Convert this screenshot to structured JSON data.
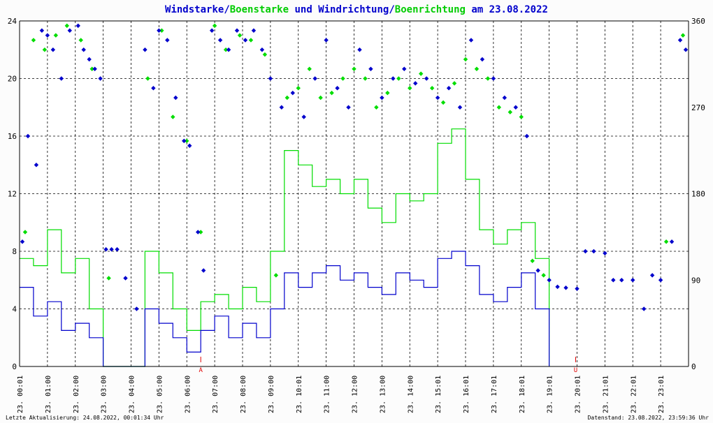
{
  "title": {
    "parts": [
      {
        "text": "Windstarke",
        "color": "#0000cc"
      },
      {
        "text": "/",
        "color": "#0000cc"
      },
      {
        "text": "Boenstarke",
        "color": "#00cc00"
      },
      {
        "text": " und ",
        "color": "#0000cc"
      },
      {
        "text": "Windrichtung",
        "color": "#0000cc"
      },
      {
        "text": "/",
        "color": "#0000cc"
      },
      {
        "text": "Boenrichtung",
        "color": "#00cc00"
      },
      {
        "text": " am 23.08.2022",
        "color": "#0000cc"
      }
    ]
  },
  "footer": {
    "left": "Letzte Aktualisierung: 24.08.2022, 00:01:34 Uhr",
    "right": "Datenstand: 23.08.2022, 23:59:36 Uhr"
  },
  "markers": [
    {
      "hour": 6.5,
      "label": "A"
    },
    {
      "hour": 19.95,
      "label": "U"
    }
  ],
  "chart_data": {
    "type": "line",
    "x_range": [
      0,
      24
    ],
    "x_tick_labels": [
      "23. 00:01",
      "23. 01:00",
      "23. 02:00",
      "23. 03:00",
      "23. 04:00",
      "23. 05:00",
      "23. 06:00",
      "23. 07:00",
      "23. 08:00",
      "23. 09:00",
      "23. 10:01",
      "23. 11:00",
      "23. 12:00",
      "23. 13:00",
      "23. 14:00",
      "23. 15:01",
      "23. 16:01",
      "23. 17:01",
      "23. 18:01",
      "23. 19:01",
      "23. 20:01",
      "23. 21:01",
      "23. 22:01",
      "23. 23:01"
    ],
    "y_left": {
      "min": 0,
      "max": 24,
      "ticks": [
        0,
        4,
        8,
        12,
        16,
        20,
        24
      ]
    },
    "y_right": {
      "min": 0,
      "max": 360,
      "ticks": [
        0,
        90,
        180,
        270,
        360
      ]
    },
    "grid": true,
    "colors": {
      "wind": "#0000cc",
      "gust": "#00dd00",
      "grid": "#000000"
    },
    "series": [
      {
        "name": "Windstarke",
        "kind": "line",
        "axis": "left",
        "hours": [
          0.0,
          0.5,
          1.0,
          1.5,
          2.0,
          2.5,
          3.0,
          3.5,
          4.0,
          4.5,
          5.0,
          5.5,
          6.0,
          6.5,
          7.0,
          7.5,
          8.0,
          8.5,
          9.0,
          9.5,
          10.0,
          10.5,
          11.0,
          11.5,
          12.0,
          12.5,
          13.0,
          13.5,
          14.0,
          14.5,
          15.0,
          15.5,
          16.0,
          16.5,
          17.0,
          17.5,
          18.0,
          18.5,
          19.0
        ],
        "values": [
          5.5,
          3.5,
          4.5,
          2.5,
          3.0,
          2.0,
          0.0,
          0.0,
          0.0,
          4.0,
          3.0,
          2.0,
          1.0,
          2.5,
          3.5,
          2.0,
          3.0,
          2.0,
          4.0,
          6.5,
          5.5,
          6.5,
          7.0,
          6.0,
          6.5,
          5.5,
          5.0,
          6.5,
          6.0,
          5.5,
          7.5,
          8.0,
          7.0,
          5.0,
          4.5,
          5.5,
          6.5,
          4.0,
          0.0
        ]
      },
      {
        "name": "Boenstarke",
        "kind": "line",
        "axis": "left",
        "hours": [
          0.0,
          0.5,
          1.0,
          1.5,
          2.0,
          2.5,
          3.0,
          3.5,
          4.0,
          4.5,
          5.0,
          5.5,
          6.0,
          6.5,
          7.0,
          7.5,
          8.0,
          8.5,
          9.0,
          9.5,
          10.0,
          10.5,
          11.0,
          11.5,
          12.0,
          12.5,
          13.0,
          13.5,
          14.0,
          14.5,
          15.0,
          15.5,
          16.0,
          16.5,
          17.0,
          17.5,
          18.0,
          18.5,
          19.0
        ],
        "values": [
          7.5,
          7.0,
          9.5,
          6.5,
          7.5,
          4.0,
          0.0,
          0.0,
          0.0,
          8.0,
          6.5,
          4.0,
          2.5,
          4.5,
          5.0,
          4.0,
          5.5,
          4.5,
          8.0,
          15.0,
          14.0,
          12.5,
          13.0,
          12.0,
          13.0,
          11.0,
          10.0,
          12.0,
          11.5,
          12.0,
          15.5,
          16.5,
          13.0,
          9.5,
          8.5,
          9.5,
          10.0,
          7.5,
          0.0
        ]
      },
      {
        "name": "Windrichtung",
        "kind": "scatter",
        "axis": "right",
        "points": [
          [
            0.1,
            130
          ],
          [
            0.3,
            240
          ],
          [
            0.6,
            210
          ],
          [
            0.8,
            350
          ],
          [
            1.0,
            345
          ],
          [
            1.2,
            330
          ],
          [
            1.5,
            300
          ],
          [
            1.8,
            350
          ],
          [
            2.1,
            355
          ],
          [
            2.3,
            330
          ],
          [
            2.5,
            320
          ],
          [
            2.7,
            310
          ],
          [
            2.9,
            300
          ],
          [
            3.1,
            122
          ],
          [
            3.3,
            122
          ],
          [
            3.5,
            122
          ],
          [
            3.8,
            92
          ],
          [
            4.2,
            60
          ],
          [
            4.5,
            330
          ],
          [
            4.8,
            290
          ],
          [
            5.0,
            350
          ],
          [
            5.3,
            340
          ],
          [
            5.6,
            280
          ],
          [
            5.9,
            235
          ],
          [
            6.1,
            230
          ],
          [
            6.4,
            140
          ],
          [
            6.6,
            100
          ],
          [
            6.9,
            350
          ],
          [
            7.2,
            340
          ],
          [
            7.5,
            330
          ],
          [
            7.8,
            350
          ],
          [
            8.1,
            340
          ],
          [
            8.4,
            350
          ],
          [
            8.7,
            330
          ],
          [
            9.0,
            300
          ],
          [
            9.4,
            270
          ],
          [
            9.8,
            285
          ],
          [
            10.2,
            260
          ],
          [
            10.6,
            300
          ],
          [
            11.0,
            340
          ],
          [
            11.4,
            290
          ],
          [
            11.8,
            270
          ],
          [
            12.2,
            330
          ],
          [
            12.6,
            310
          ],
          [
            13.0,
            280
          ],
          [
            13.4,
            300
          ],
          [
            13.8,
            310
          ],
          [
            14.2,
            295
          ],
          [
            14.6,
            300
          ],
          [
            15.0,
            280
          ],
          [
            15.4,
            290
          ],
          [
            15.8,
            270
          ],
          [
            16.2,
            340
          ],
          [
            16.6,
            320
          ],
          [
            17.0,
            300
          ],
          [
            17.4,
            280
          ],
          [
            17.8,
            270
          ],
          [
            18.2,
            240
          ],
          [
            18.6,
            100
          ],
          [
            19.0,
            90
          ],
          [
            19.3,
            83
          ],
          [
            19.6,
            82
          ],
          [
            20.0,
            81
          ],
          [
            20.3,
            120
          ],
          [
            20.6,
            120
          ],
          [
            21.0,
            118
          ],
          [
            21.3,
            90
          ],
          [
            21.6,
            90
          ],
          [
            22.0,
            90
          ],
          [
            22.4,
            60
          ],
          [
            22.7,
            95
          ],
          [
            23.0,
            90
          ],
          [
            23.4,
            130
          ],
          [
            23.7,
            340
          ],
          [
            23.9,
            330
          ]
        ]
      },
      {
        "name": "Boenrichtung",
        "kind": "scatter",
        "axis": "right",
        "points": [
          [
            0.2,
            140
          ],
          [
            0.5,
            340
          ],
          [
            0.9,
            330
          ],
          [
            1.3,
            345
          ],
          [
            1.7,
            355
          ],
          [
            2.2,
            340
          ],
          [
            2.6,
            310
          ],
          [
            3.2,
            92
          ],
          [
            4.6,
            300
          ],
          [
            5.1,
            350
          ],
          [
            5.5,
            260
          ],
          [
            6.0,
            235
          ],
          [
            6.5,
            140
          ],
          [
            7.0,
            355
          ],
          [
            7.4,
            330
          ],
          [
            7.9,
            345
          ],
          [
            8.3,
            340
          ],
          [
            8.8,
            325
          ],
          [
            9.2,
            95
          ],
          [
            9.6,
            280
          ],
          [
            10.0,
            290
          ],
          [
            10.4,
            310
          ],
          [
            10.8,
            280
          ],
          [
            11.2,
            285
          ],
          [
            11.6,
            300
          ],
          [
            12.0,
            310
          ],
          [
            12.4,
            300
          ],
          [
            12.8,
            270
          ],
          [
            13.2,
            285
          ],
          [
            13.6,
            300
          ],
          [
            14.0,
            290
          ],
          [
            14.4,
            305
          ],
          [
            14.8,
            290
          ],
          [
            15.2,
            275
          ],
          [
            15.6,
            295
          ],
          [
            16.0,
            320
          ],
          [
            16.4,
            310
          ],
          [
            16.8,
            300
          ],
          [
            17.2,
            270
          ],
          [
            17.6,
            265
          ],
          [
            18.0,
            260
          ],
          [
            18.4,
            110
          ],
          [
            18.8,
            95
          ],
          [
            23.2,
            130
          ],
          [
            23.8,
            345
          ]
        ]
      }
    ]
  }
}
